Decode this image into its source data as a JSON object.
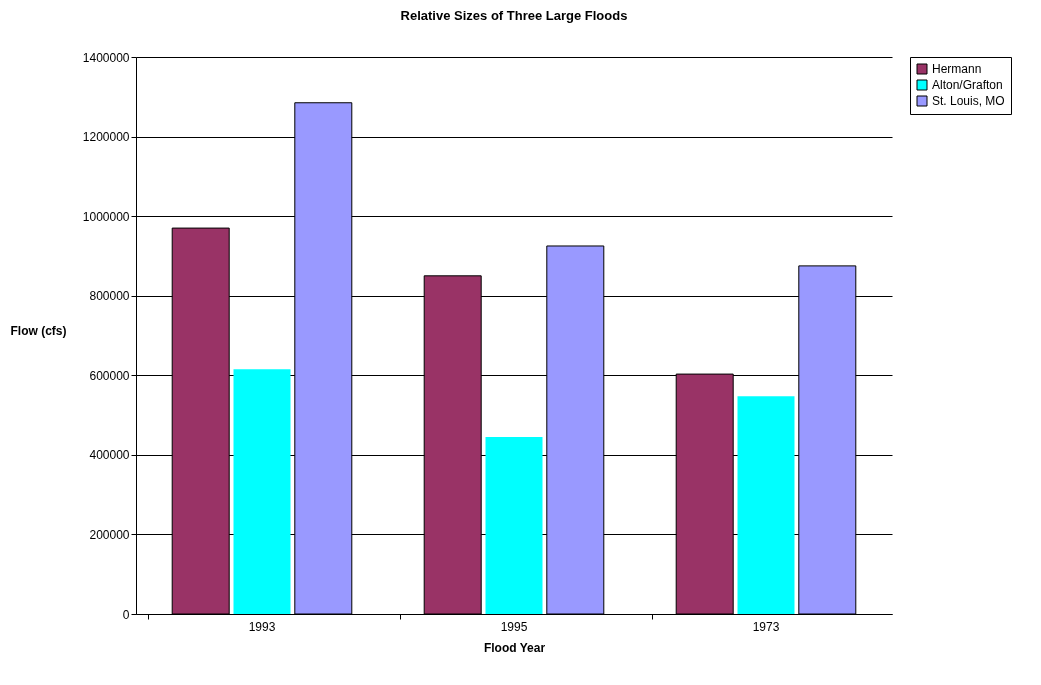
{
  "chart_data": {
    "type": "bar",
    "title": "Relative Sizes of Three Large Floods",
    "xlabel": "Flood Year",
    "ylabel": "Flow (cfs)",
    "categories": [
      "1993",
      "1995",
      "1973"
    ],
    "series": [
      {
        "name": "Hermann",
        "color": "#993366",
        "values": [
          970000,
          850000,
          603000
        ]
      },
      {
        "name": "Alton/Grafton",
        "color": "#00ffff",
        "values": [
          615000,
          445000,
          547000
        ]
      },
      {
        "name": "St. Louis, MO",
        "color": "#9999ff",
        "values": [
          1285000,
          925000,
          875000
        ]
      }
    ],
    "ylim": [
      0,
      1400000
    ],
    "yticks": [
      0,
      200000,
      400000,
      600000,
      800000,
      1000000,
      1200000,
      1400000
    ],
    "grid": "y",
    "legend": "right"
  }
}
